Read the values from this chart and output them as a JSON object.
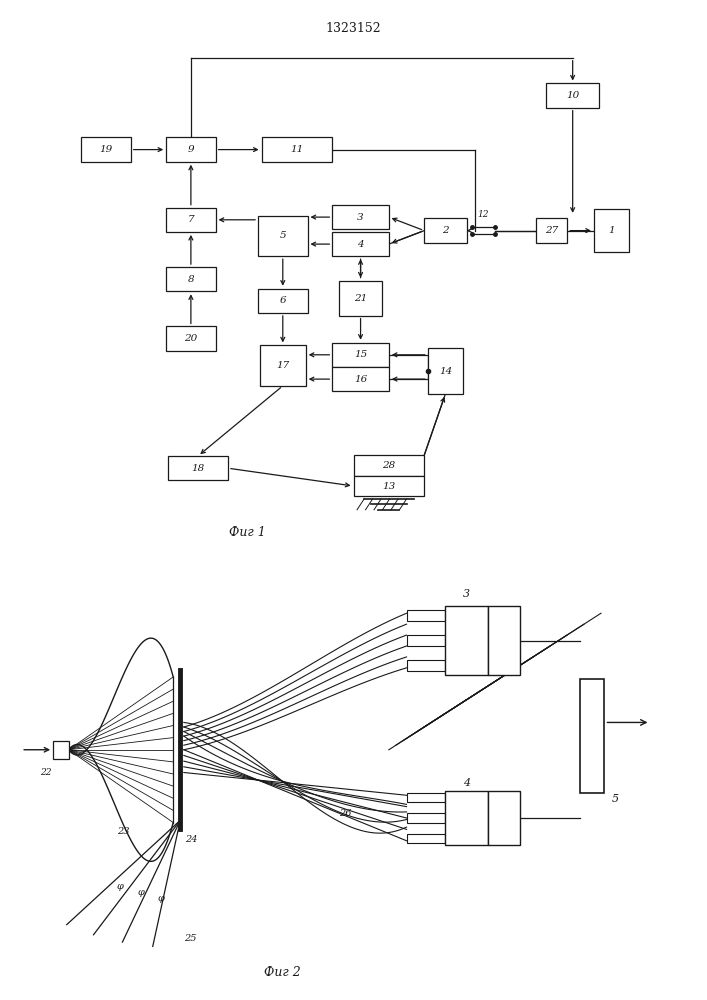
{
  "title": "1323152",
  "fig1_caption": "Фиг 1",
  "fig2_caption": "Фиг 2",
  "bg_color": "#ffffff",
  "lc": "#1a1a1a",
  "bc": "#ffffff",
  "ec": "#1a1a1a",
  "tc": "#1a1a1a",
  "fig1": {
    "blocks": {
      "19": [
        1.5,
        7.6,
        0.7,
        0.45
      ],
      "9": [
        2.7,
        7.6,
        0.7,
        0.45
      ],
      "11": [
        4.2,
        7.6,
        1.0,
        0.45
      ],
      "10": [
        8.1,
        8.6,
        0.75,
        0.45
      ],
      "7": [
        2.7,
        6.3,
        0.7,
        0.45
      ],
      "5": [
        4.0,
        6.0,
        0.7,
        0.75
      ],
      "3": [
        5.1,
        6.35,
        0.8,
        0.45
      ],
      "2": [
        6.3,
        6.1,
        0.6,
        0.45
      ],
      "27": [
        7.8,
        6.1,
        0.45,
        0.45
      ],
      "1": [
        8.65,
        6.1,
        0.5,
        0.8
      ],
      "8": [
        2.7,
        5.2,
        0.7,
        0.45
      ],
      "6": [
        4.0,
        4.8,
        0.7,
        0.45
      ],
      "4": [
        5.1,
        5.85,
        0.8,
        0.45
      ],
      "21": [
        5.1,
        4.85,
        0.6,
        0.65
      ],
      "20": [
        2.7,
        4.1,
        0.7,
        0.45
      ],
      "17": [
        4.0,
        3.6,
        0.65,
        0.75
      ],
      "15": [
        5.1,
        3.8,
        0.8,
        0.45
      ],
      "16": [
        5.1,
        3.35,
        0.8,
        0.45
      ],
      "14": [
        6.3,
        3.5,
        0.5,
        0.85
      ],
      "18": [
        2.8,
        1.7,
        0.85,
        0.45
      ],
      "28": [
        5.5,
        1.75,
        1.0,
        0.38
      ],
      "13": [
        5.5,
        1.37,
        1.0,
        0.38
      ]
    }
  }
}
